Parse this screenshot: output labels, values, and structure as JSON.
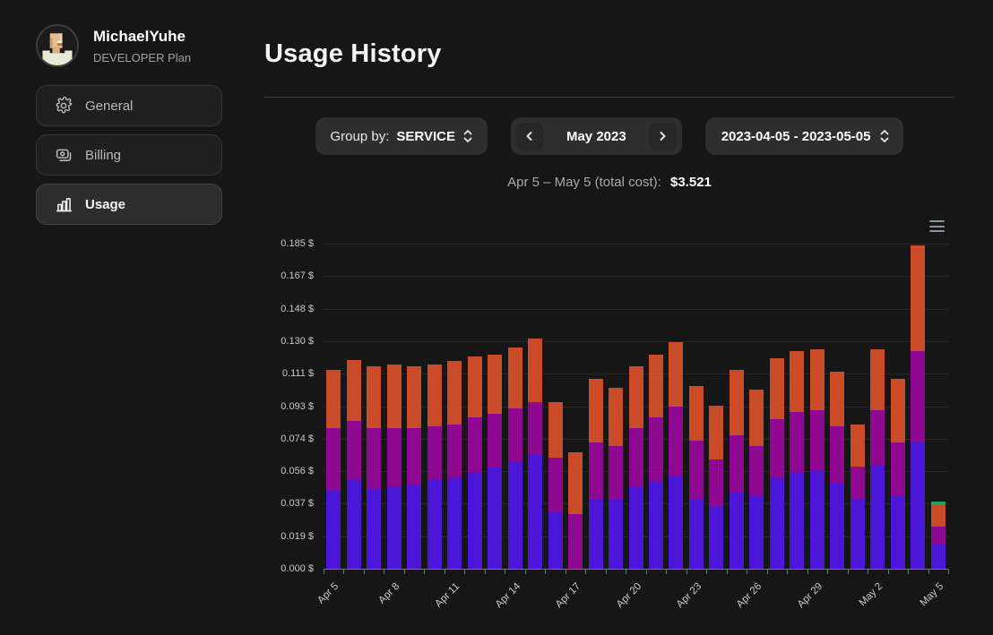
{
  "sidebar": {
    "user": {
      "name": "MichaelYuhe",
      "plan": "DEVELOPER Plan"
    },
    "items": [
      {
        "label": "General",
        "icon": "gear-icon",
        "active": false
      },
      {
        "label": "Billing",
        "icon": "billing-icon",
        "active": false
      },
      {
        "label": "Usage",
        "icon": "usage-icon",
        "active": true
      }
    ]
  },
  "header": {
    "title": "Usage History"
  },
  "controls": {
    "group_by": {
      "label": "Group by:",
      "value": "SERVICE"
    },
    "month_nav": {
      "value": "May 2023"
    },
    "date_range": {
      "value": "2023-04-05 - 2023-05-05"
    }
  },
  "summary": {
    "label": "Apr 5 – May 5 (total cost):",
    "total": "$3.521"
  },
  "chart_data": {
    "type": "bar",
    "stacked": true,
    "title": "",
    "xlabel": "",
    "ylabel": "",
    "currency_suffix": "$",
    "legend": false,
    "grid": true,
    "ylim": [
      0,
      0.185
    ],
    "yticks": [
      "0.185 $",
      "0.167 $",
      "0.148 $",
      "0.130 $",
      "0.111 $",
      "0.093 $",
      "0.074 $",
      "0.056 $",
      "0.037 $",
      "0.019 $",
      "0.000 $"
    ],
    "label_every": 3,
    "categories": [
      "Apr 5",
      "Apr 6",
      "Apr 7",
      "Apr 8",
      "Apr 9",
      "Apr 10",
      "Apr 11",
      "Apr 12",
      "Apr 13",
      "Apr 14",
      "Apr 15",
      "Apr 16",
      "Apr 17",
      "Apr 18",
      "Apr 19",
      "Apr 20",
      "Apr 21",
      "Apr 22",
      "Apr 23",
      "Apr 24",
      "Apr 25",
      "Apr 26",
      "Apr 27",
      "Apr 28",
      "Apr 29",
      "Apr 30",
      "May 1",
      "May 2",
      "May 3",
      "May 4",
      "May 5"
    ],
    "series": [
      {
        "name": "blue-segment",
        "color": "#4b16d8",
        "values": [
          0.045,
          0.051,
          0.046,
          0.047,
          0.048,
          0.051,
          0.052,
          0.055,
          0.058,
          0.061,
          0.065,
          0.032,
          0.0,
          0.039,
          0.039,
          0.047,
          0.05,
          0.053,
          0.04,
          0.035,
          0.044,
          0.042,
          0.052,
          0.055,
          0.056,
          0.049,
          0.039,
          0.059,
          0.042,
          0.072,
          0.014
        ]
      },
      {
        "name": "purple-segment",
        "color": "#8e0892",
        "values": [
          0.035,
          0.033,
          0.034,
          0.033,
          0.032,
          0.03,
          0.03,
          0.031,
          0.03,
          0.03,
          0.03,
          0.031,
          0.031,
          0.033,
          0.031,
          0.033,
          0.036,
          0.039,
          0.033,
          0.027,
          0.032,
          0.028,
          0.033,
          0.034,
          0.034,
          0.032,
          0.019,
          0.031,
          0.03,
          0.052,
          0.01
        ]
      },
      {
        "name": "orange-segment",
        "color": "#c94b28",
        "values": [
          0.033,
          0.035,
          0.035,
          0.036,
          0.035,
          0.035,
          0.036,
          0.035,
          0.034,
          0.035,
          0.036,
          0.032,
          0.035,
          0.036,
          0.033,
          0.035,
          0.036,
          0.037,
          0.031,
          0.031,
          0.037,
          0.032,
          0.035,
          0.035,
          0.035,
          0.031,
          0.024,
          0.035,
          0.036,
          0.06,
          0.012
        ]
      },
      {
        "name": "green-segment",
        "color": "#21a25e",
        "values": [
          0,
          0,
          0,
          0,
          0,
          0,
          0,
          0,
          0,
          0,
          0,
          0,
          0,
          0,
          0,
          0,
          0,
          0,
          0,
          0,
          0,
          0,
          0,
          0,
          0,
          0,
          0,
          0,
          0,
          0,
          0.002
        ]
      }
    ]
  }
}
